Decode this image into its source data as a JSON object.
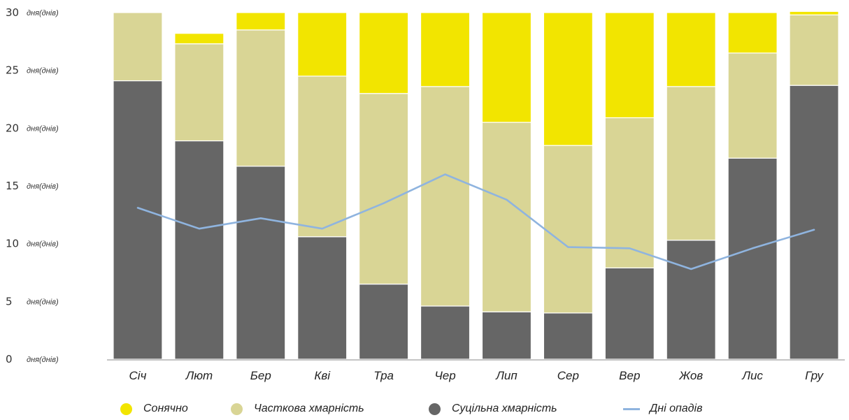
{
  "chart_data": {
    "type": "bar",
    "stacked": true,
    "categories": [
      "Січ",
      "Лют",
      "Бер",
      "Кві",
      "Тра",
      "Чер",
      "Лип",
      "Сер",
      "Вер",
      "Жов",
      "Лис",
      "Гру"
    ],
    "ylim": [
      0,
      30
    ],
    "yticks": [
      0,
      5,
      10,
      15,
      20,
      25,
      30
    ],
    "ytick_unit": "дня(днів)",
    "series": [
      {
        "name": "Суцільна хмарність",
        "color": "#666666",
        "values": [
          24.1,
          18.9,
          16.7,
          10.6,
          6.5,
          4.6,
          4.1,
          4.0,
          7.9,
          10.3,
          17.4,
          23.7
        ]
      },
      {
        "name": "Часткова хмарність",
        "color": "#d9d595",
        "values": [
          5.9,
          8.4,
          11.8,
          13.9,
          16.5,
          19.0,
          16.4,
          14.5,
          13.0,
          13.3,
          9.1,
          6.1
        ]
      },
      {
        "name": "Сонячно",
        "color": "#f2e500",
        "values": [
          0.0,
          0.9,
          1.5,
          5.5,
          7.0,
          6.4,
          9.5,
          11.5,
          9.1,
          6.4,
          3.5,
          0.3
        ]
      }
    ],
    "line_series": {
      "name": "Дні опадів",
      "color": "#8fb4df",
      "values": [
        13.1,
        11.3,
        12.2,
        11.3,
        13.5,
        16.0,
        13.8,
        9.7,
        9.6,
        7.8,
        9.6,
        11.2
      ]
    },
    "legend": [
      {
        "name": "Сонячно",
        "color": "#f2e500",
        "kind": "dot"
      },
      {
        "name": "Часткова хмарність",
        "color": "#d9d595",
        "kind": "dot"
      },
      {
        "name": "Суцільна хмарність",
        "color": "#666666",
        "kind": "dot"
      },
      {
        "name": "Дні опадів",
        "color": "#8fb4df",
        "kind": "line"
      }
    ],
    "legend_position": "bottom",
    "grid": false
  }
}
